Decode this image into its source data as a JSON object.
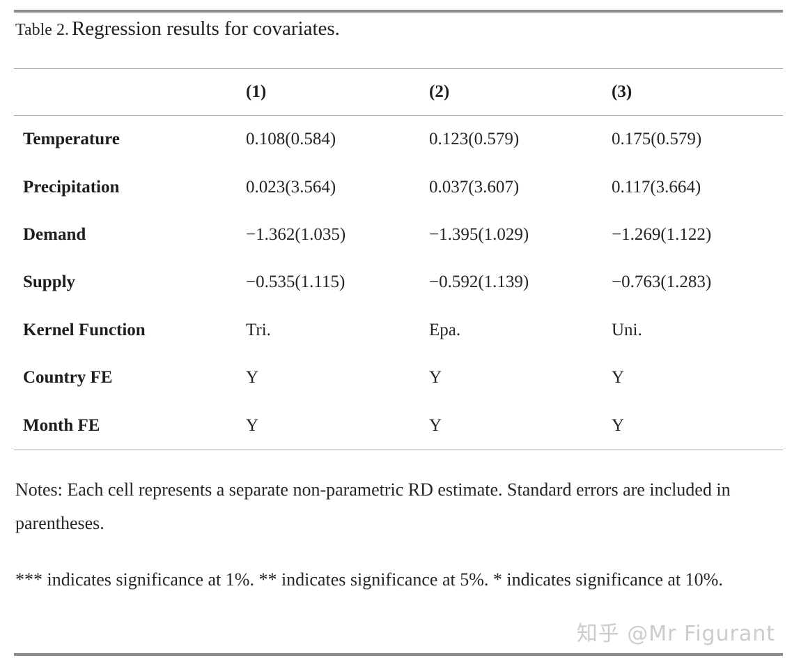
{
  "caption": {
    "prefix": "Table 2.",
    "title": "Regression results for covariates."
  },
  "table": {
    "column_headers": [
      "(1)",
      "(2)",
      "(3)"
    ],
    "rows": [
      {
        "label": "Temperature",
        "values": [
          "0.108(0.584)",
          "0.123(0.579)",
          "0.175(0.579)"
        ]
      },
      {
        "label": "Precipitation",
        "values": [
          "0.023(3.564)",
          "0.037(3.607)",
          "0.117(3.664)"
        ]
      },
      {
        "label": "Demand",
        "values": [
          "−1.362(1.035)",
          "−1.395(1.029)",
          "−1.269(1.122)"
        ]
      },
      {
        "label": "Supply",
        "values": [
          "−0.535(1.115)",
          "−0.592(1.139)",
          "−0.763(1.283)"
        ]
      },
      {
        "label": "Kernel Function",
        "values": [
          "Tri.",
          "Epa.",
          "Uni."
        ]
      },
      {
        "label": "Country FE",
        "values": [
          "Y",
          "Y",
          "Y"
        ]
      },
      {
        "label": "Month FE",
        "values": [
          "Y",
          "Y",
          "Y"
        ]
      }
    ]
  },
  "notes": {
    "notes_text": "Notes: Each cell represents a separate non-parametric RD estimate. Standard errors are included in parentheses.",
    "significance_text": "*** indicates significance at 1%. ** indicates significance at 5%. * indicates significance at 10%."
  },
  "watermark": {
    "text": "知乎 @Mr Figurant"
  },
  "colors": {
    "text": "#212121",
    "rule_heavy": "#8c8c8c",
    "rule_light": "#a8a8a8",
    "watermark": "#cccccc",
    "background": "#ffffff"
  }
}
